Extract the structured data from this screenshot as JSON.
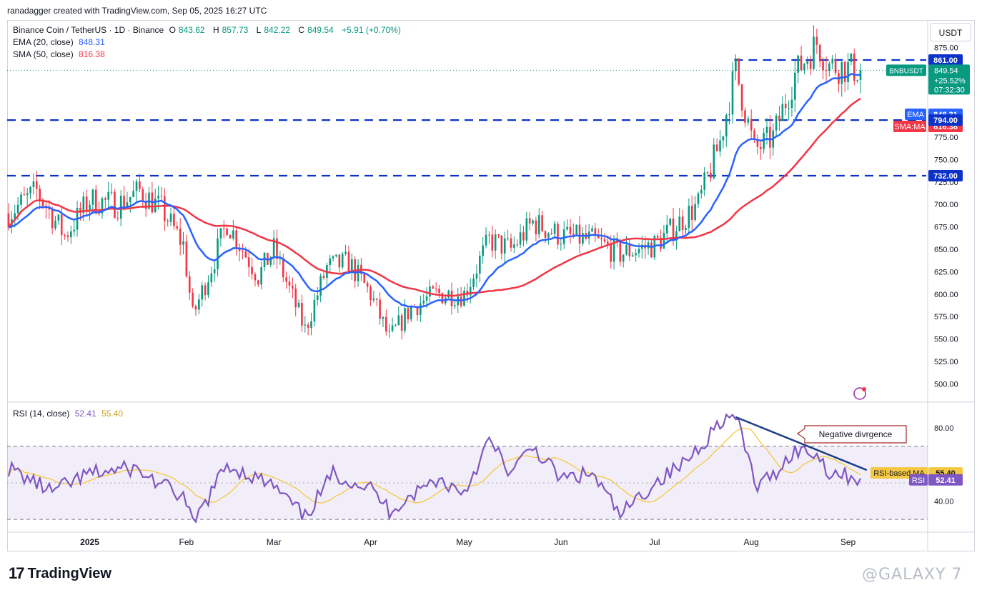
{
  "header": {
    "credit": "ranadagger created with TradingView.com, Sep 05, 2025 16:27 UTC"
  },
  "legend": {
    "symbol": "Binance Coin / TetherUS · 1D · Binance",
    "o_label": "O",
    "o": "843.62",
    "h_label": "H",
    "h": "857.73",
    "l_label": "L",
    "l": "842.22",
    "c_label": "C",
    "c": "849.54",
    "change": "+5.91 (+0.70%)",
    "ema_label": "EMA (20, close)",
    "ema_value": "848.31",
    "sma_label": "SMA (50, close)",
    "sma_value": "816.38",
    "rsi_label": "RSI (14, close)",
    "rsi_value": "52.41",
    "rsi_ma_value": "55.40"
  },
  "currency_button": "USDT",
  "colors": {
    "up": "#089981",
    "down": "#f23645",
    "ema": "#2962ff",
    "sma": "#f23645",
    "rsi": "#7e57c2",
    "rsi_ma": "#f5c842",
    "level_line": "#0c32c9",
    "trend": "#1c3f87"
  },
  "chart_data": [
    {
      "type": "candlestick",
      "title": "Binance Coin / TetherUS · 1D · Binance",
      "y_unit": "USDT",
      "ylim": [
        482,
        904
      ],
      "y_ticks": [
        "500.00",
        "525.00",
        "550.00",
        "575.00",
        "600.00",
        "625.00",
        "650.00",
        "675.00",
        "700.00",
        "725.00",
        "750.00",
        "775.00",
        "875.00"
      ],
      "x_ticks": [
        {
          "label": "2025",
          "date": "2025-01-01"
        },
        {
          "label": "Feb",
          "date": "2025-02-01"
        },
        {
          "label": "Mar",
          "date": "2025-03-01"
        },
        {
          "label": "Apr",
          "date": "2025-04-01"
        },
        {
          "label": "May",
          "date": "2025-05-01"
        },
        {
          "label": "Jun",
          "date": "2025-06-01"
        },
        {
          "label": "Jul",
          "date": "2025-07-01"
        },
        {
          "label": "Aug",
          "date": "2025-08-01"
        },
        {
          "label": "Sep",
          "date": "2025-09-01"
        }
      ],
      "x_range": [
        "2024-12-06",
        "2025-09-05"
      ],
      "close_anchors": [
        {
          "date": "2024-12-06",
          "close": 690
        },
        {
          "date": "2024-12-15",
          "close": 715
        },
        {
          "date": "2024-12-24",
          "close": 665
        },
        {
          "date": "2025-01-01",
          "close": 705
        },
        {
          "date": "2025-01-10",
          "close": 700
        },
        {
          "date": "2025-01-17",
          "close": 715
        },
        {
          "date": "2025-01-24",
          "close": 695
        },
        {
          "date": "2025-01-31",
          "close": 655
        },
        {
          "date": "2025-02-03",
          "close": 575
        },
        {
          "date": "2025-02-10",
          "close": 640
        },
        {
          "date": "2025-02-14",
          "close": 680
        },
        {
          "date": "2025-02-24",
          "close": 620
        },
        {
          "date": "2025-03-01",
          "close": 650
        },
        {
          "date": "2025-03-11",
          "close": 560
        },
        {
          "date": "2025-03-18",
          "close": 630
        },
        {
          "date": "2025-03-25",
          "close": 635
        },
        {
          "date": "2025-04-01",
          "close": 600
        },
        {
          "date": "2025-04-07",
          "close": 550
        },
        {
          "date": "2025-04-14",
          "close": 585
        },
        {
          "date": "2025-04-22",
          "close": 600
        },
        {
          "date": "2025-05-01",
          "close": 600
        },
        {
          "date": "2025-05-09",
          "close": 660
        },
        {
          "date": "2025-05-16",
          "close": 650
        },
        {
          "date": "2025-05-23",
          "close": 680
        },
        {
          "date": "2025-06-01",
          "close": 665
        },
        {
          "date": "2025-06-11",
          "close": 660
        },
        {
          "date": "2025-06-20",
          "close": 645
        },
        {
          "date": "2025-07-01",
          "close": 655
        },
        {
          "date": "2025-07-09",
          "close": 680
        },
        {
          "date": "2025-07-15",
          "close": 700
        },
        {
          "date": "2025-07-22",
          "close": 770
        },
        {
          "date": "2025-07-27",
          "close": 850
        },
        {
          "date": "2025-08-02",
          "close": 760
        },
        {
          "date": "2025-08-08",
          "close": 775
        },
        {
          "date": "2025-08-15",
          "close": 845
        },
        {
          "date": "2025-08-22",
          "close": 880
        },
        {
          "date": "2025-08-26",
          "close": 855
        },
        {
          "date": "2025-09-05",
          "close": 849.54
        }
      ],
      "series": [
        {
          "name": "EMA (20, close)",
          "last": 848.31
        },
        {
          "name": "SMA (50, close)",
          "last": 816.38
        }
      ],
      "levels": [
        {
          "label": "861.00",
          "value": 861,
          "from": "2025-07-27"
        },
        {
          "label": "794.00",
          "value": 794,
          "from": "2024-12-06"
        },
        {
          "label": "732.00",
          "value": 732,
          "from": "2024-12-06"
        }
      ],
      "price_tags": [
        {
          "label": "861.00",
          "value": 861,
          "kind": "level"
        },
        {
          "label": "849.54",
          "value": 849.54,
          "kind": "last",
          "sub": [
            "+25.52%",
            "07:32:30"
          ]
        },
        {
          "label": "848.31",
          "value": 848.31,
          "kind": "ema",
          "tag": "EMA"
        },
        {
          "label": "816.38",
          "value": 816.38,
          "kind": "sma",
          "tag": "SMA:MA"
        },
        {
          "label": "794.00",
          "value": 794,
          "kind": "level"
        },
        {
          "label": "732.00",
          "value": 732,
          "kind": "level"
        }
      ],
      "symbol_tag": "BNBUSDT"
    },
    {
      "type": "line",
      "title": "RSI (14, close)",
      "ylim": [
        23,
        93
      ],
      "y_ticks": [
        "40.00",
        "80.00"
      ],
      "bands": [
        30,
        70
      ],
      "series": [
        {
          "name": "RSI",
          "last": 52.41
        },
        {
          "name": "RSI-based MA",
          "last": 55.4
        }
      ],
      "rsi_anchors": [
        {
          "date": "2024-12-06",
          "rsi": 58
        },
        {
          "date": "2024-12-20",
          "rsi": 45
        },
        {
          "date": "2025-01-01",
          "rsi": 55
        },
        {
          "date": "2025-01-15",
          "rsi": 58
        },
        {
          "date": "2025-01-31",
          "rsi": 42
        },
        {
          "date": "2025-02-03",
          "rsi": 27
        },
        {
          "date": "2025-02-14",
          "rsi": 60
        },
        {
          "date": "2025-03-01",
          "rsi": 48
        },
        {
          "date": "2025-03-11",
          "rsi": 31
        },
        {
          "date": "2025-03-20",
          "rsi": 55
        },
        {
          "date": "2025-04-01",
          "rsi": 47
        },
        {
          "date": "2025-04-07",
          "rsi": 35
        },
        {
          "date": "2025-04-22",
          "rsi": 52
        },
        {
          "date": "2025-05-01",
          "rsi": 45
        },
        {
          "date": "2025-05-09",
          "rsi": 73
        },
        {
          "date": "2025-05-16",
          "rsi": 55
        },
        {
          "date": "2025-05-23",
          "rsi": 70
        },
        {
          "date": "2025-06-01",
          "rsi": 52
        },
        {
          "date": "2025-06-11",
          "rsi": 55
        },
        {
          "date": "2025-06-20",
          "rsi": 32
        },
        {
          "date": "2025-07-01",
          "rsi": 50
        },
        {
          "date": "2025-07-10",
          "rsi": 60
        },
        {
          "date": "2025-07-18",
          "rsi": 75
        },
        {
          "date": "2025-07-22",
          "rsi": 84
        },
        {
          "date": "2025-07-27",
          "rsi": 86
        },
        {
          "date": "2025-08-03",
          "rsi": 47
        },
        {
          "date": "2025-08-10",
          "rsi": 58
        },
        {
          "date": "2025-08-15",
          "rsi": 68
        },
        {
          "date": "2025-08-22",
          "rsi": 66
        },
        {
          "date": "2025-08-26",
          "rsi": 56
        },
        {
          "date": "2025-09-05",
          "rsi": 52.41
        }
      ],
      "annotation": "Negative divrgence",
      "trendline": {
        "from": {
          "date": "2025-07-27",
          "rsi": 86
        },
        "to": {
          "date": "2025-09-07",
          "rsi": 57
        }
      }
    }
  ],
  "brand": {
    "logo_text": "17",
    "name": "TradingView"
  },
  "watermark": "@GALAXY 7"
}
